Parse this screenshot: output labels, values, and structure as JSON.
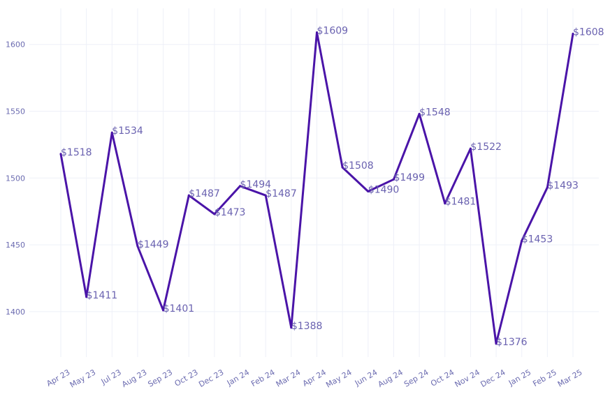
{
  "chart_data": {
    "type": "line",
    "title": "",
    "xlabel": "",
    "ylabel": "",
    "categories": [
      "Apr 23",
      "May 23",
      "Jul 23",
      "Aug 23",
      "Sep 23",
      "Oct 23",
      "Dec 23",
      "Jan 24",
      "Feb 24",
      "Mar 24",
      "Apr 24",
      "May 24",
      "Jun 24",
      "Aug 24",
      "Sep 24",
      "Oct 24",
      "Nov 24",
      "Dec 24",
      "Jan 25",
      "Feb 25",
      "Mar 25"
    ],
    "series": [
      {
        "values": [
          1518,
          1411,
          1534,
          1449,
          1401,
          1487,
          1473,
          1494,
          1487,
          1388,
          1609,
          1508,
          1490,
          1499,
          1548,
          1481,
          1522,
          1376,
          1453,
          1493,
          1608
        ],
        "data_labels": [
          "$1518",
          "$1411",
          "$1534",
          "$1449",
          "$1401",
          "$1487",
          "$1473",
          "$1494",
          "$1487",
          "$1388",
          "$1609",
          "$1508",
          "$1490",
          "$1499",
          "$1548",
          "$1481",
          "$1522",
          "$1376",
          "$1453",
          "$1493",
          "$1608"
        ]
      }
    ],
    "y_ticks": [
      "1400",
      "1450",
      "1500",
      "1550",
      "1600"
    ],
    "ylim": [
      1366,
      1627
    ],
    "grid": true,
    "legend": "none",
    "colors": {
      "line": "#4a14a8",
      "grid": "#eef0f8",
      "tick_text": "#6b6bb0",
      "label_text": "#6a62b0"
    }
  }
}
